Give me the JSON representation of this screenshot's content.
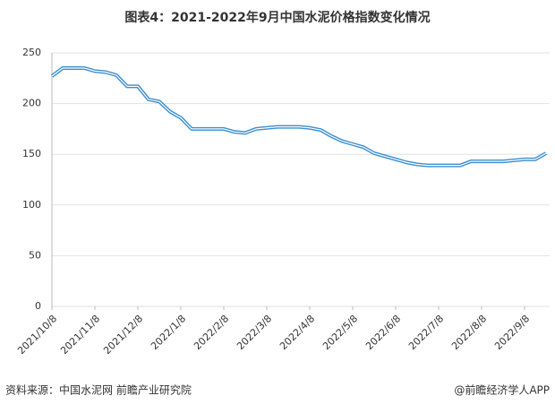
{
  "chart_data": {
    "type": "line",
    "title": "图表4：2021-2022年9月中国水泥价格指数变化情况",
    "source": "资料来源：中国水泥网 前瞻产业研究院",
    "credit": "@前瞻经济学人APP",
    "categories": [
      "2021/10/8",
      null,
      null,
      null,
      "2021/11/8",
      null,
      null,
      null,
      "2021/12/8",
      null,
      null,
      null,
      "2022/1/8",
      null,
      null,
      null,
      "2022/2/8",
      null,
      null,
      null,
      "2022/3/8",
      null,
      null,
      null,
      "2022/4/8",
      null,
      null,
      null,
      "2022/5/8",
      null,
      null,
      null,
      "2022/6/8",
      null,
      null,
      null,
      "2022/7/8",
      null,
      null,
      null,
      "2022/8/8",
      null,
      null,
      null,
      "2022/9/8",
      null,
      null
    ],
    "series": [
      {
        "color": "#3a8ed0",
        "values": [
          227,
          235,
          235,
          235,
          232,
          231,
          228,
          217,
          217,
          204,
          202,
          192,
          186,
          175,
          175,
          175,
          175,
          172,
          171,
          175,
          176,
          177,
          177,
          177,
          176,
          174,
          168,
          163,
          160,
          157,
          151,
          148,
          145,
          142,
          140,
          139,
          139,
          139,
          139,
          143,
          143,
          143,
          143,
          144,
          145,
          145,
          151
        ]
      }
    ],
    "ylim": [
      0,
      250
    ],
    "yticks": [
      0,
      50,
      100,
      150,
      200,
      250
    ],
    "grid": true
  }
}
